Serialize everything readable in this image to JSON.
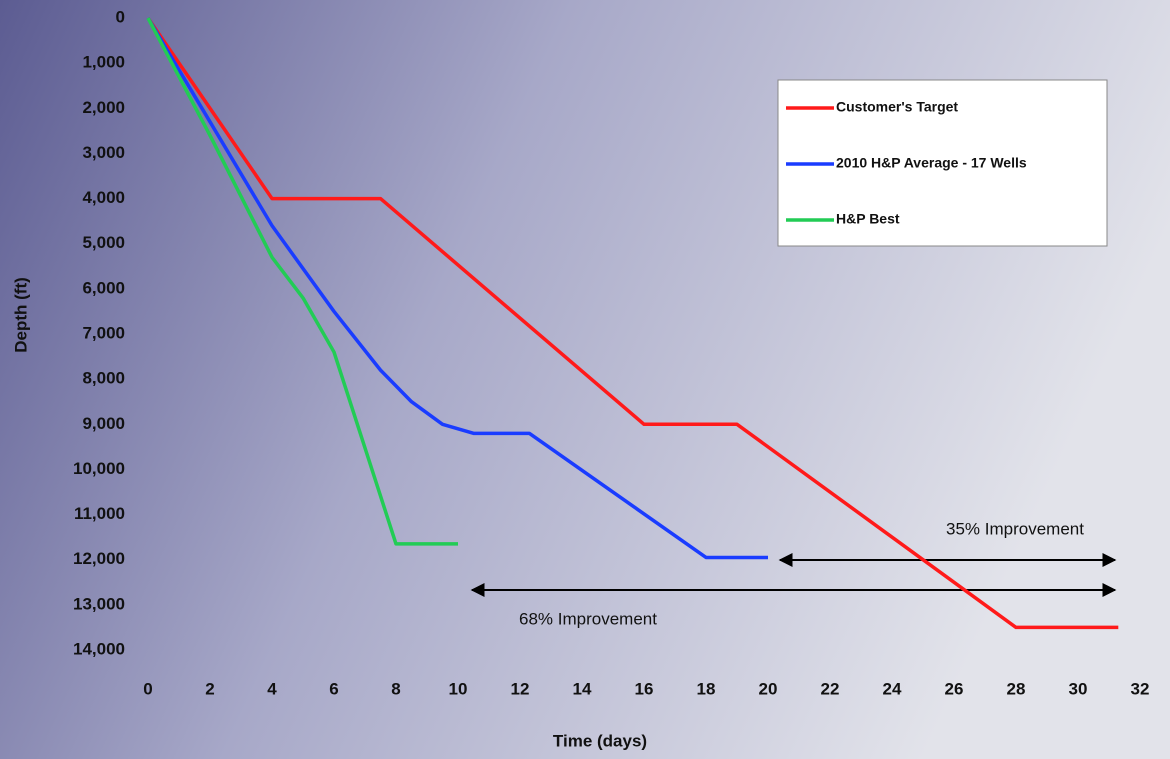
{
  "chart_data": {
    "type": "line",
    "x_label": "Time (days)",
    "y_label": "Depth (ft)",
    "xlim": [
      0,
      32
    ],
    "xticks": [
      0,
      2,
      4,
      6,
      8,
      10,
      12,
      14,
      16,
      18,
      20,
      22,
      24,
      26,
      28,
      30,
      32
    ],
    "ylim": [
      0,
      14000
    ],
    "y_inverted": true,
    "yticks": [
      0,
      {
        "value": 1000,
        "label": "1,000"
      },
      {
        "value": 2000,
        "label": "2,000"
      },
      {
        "value": 3000,
        "label": "3,000"
      },
      {
        "value": 4000,
        "label": "4,000"
      },
      {
        "value": 5000,
        "label": "5,000"
      },
      {
        "value": 6000,
        "label": "6,000"
      },
      {
        "value": 7000,
        "label": "7,000"
      },
      {
        "value": 8000,
        "label": "8,000"
      },
      {
        "value": 9000,
        "label": "9,000"
      },
      {
        "value": 10000,
        "label": "10,000"
      },
      {
        "value": 11000,
        "label": "11,000"
      },
      {
        "value": 12000,
        "label": "12,000"
      },
      {
        "value": 13000,
        "label": "13,000"
      },
      {
        "value": 14000,
        "label": "14,000"
      }
    ],
    "grid": false,
    "legend": "upper right",
    "series": [
      {
        "name": "Customer's Target",
        "color": "#ff1a1a",
        "x": [
          0,
          4,
          7.5,
          16,
          19,
          28,
          31.3
        ],
        "values": [
          0,
          4000,
          4000,
          9000,
          9000,
          13500,
          13500
        ]
      },
      {
        "name": "2010 H&P Average - 17 Wells",
        "color": "#1a3cff",
        "x": [
          0,
          2,
          4,
          6,
          7.5,
          8.5,
          9.5,
          10.5,
          12.3,
          18,
          20
        ],
        "values": [
          0,
          2300,
          4600,
          6500,
          7800,
          8500,
          9000,
          9200,
          9200,
          11950,
          11950
        ]
      },
      {
        "name": "H&P Best",
        "color": "#22cc55",
        "x": [
          0,
          2,
          4,
          5,
          6,
          8,
          10
        ],
        "values": [
          0,
          2600,
          5300,
          6200,
          7400,
          11650,
          11650
        ]
      }
    ],
    "annotations": [
      "35% Improvement",
      "68% Improvement"
    ]
  }
}
